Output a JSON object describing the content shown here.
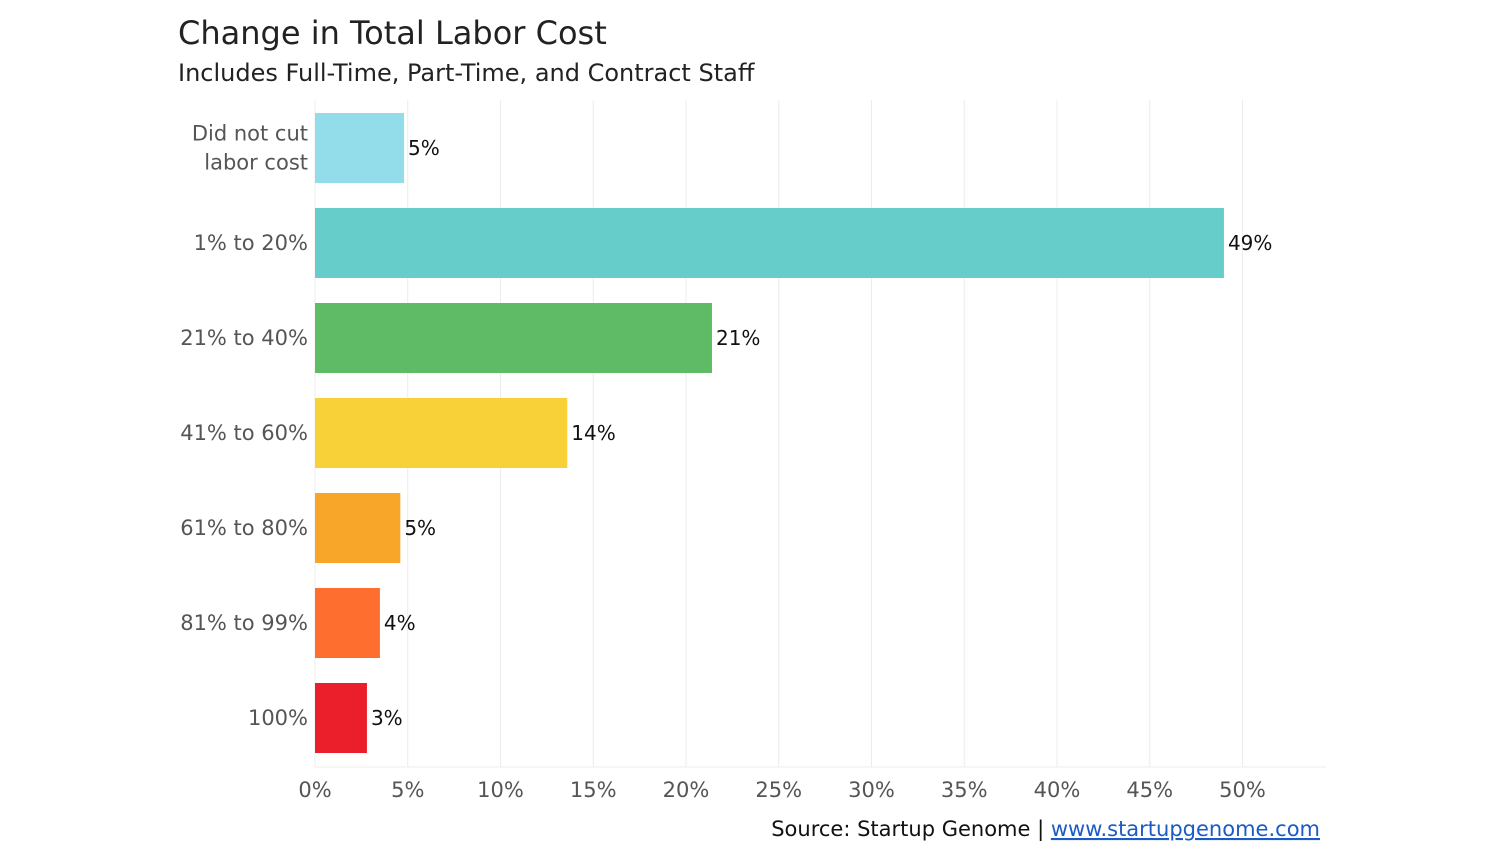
{
  "chart_data": {
    "type": "bar",
    "orientation": "horizontal",
    "title": "Change in Total Labor Cost",
    "subtitle": "Includes Full-Time, Part-Time, and Contract Staff",
    "categories": [
      [
        "Did not cut",
        "labor cost"
      ],
      [
        "1% to 20%"
      ],
      [
        "21% to 40%"
      ],
      [
        "41% to 60%"
      ],
      [
        "61% to 80%"
      ],
      [
        "81% to 99%"
      ],
      [
        "100%"
      ]
    ],
    "values": [
      4.8,
      49.0,
      21.4,
      13.6,
      4.6,
      3.5,
      2.8
    ],
    "data_labels": [
      "5%",
      "49%",
      "21%",
      "14%",
      "5%",
      "4%",
      "3%"
    ],
    "colors": [
      "#93dcea",
      "#66cdcb",
      "#5fbb66",
      "#f8d139",
      "#f7a62a",
      "#fd6e2f",
      "#eb1e2b"
    ],
    "xlim": [
      0,
      54.5
    ],
    "xticks": [
      0,
      5,
      10,
      15,
      20,
      25,
      30,
      35,
      40,
      45,
      50
    ],
    "xtick_labels": [
      "0%",
      "5%",
      "10%",
      "15%",
      "20%",
      "25%",
      "30%",
      "35%",
      "40%",
      "45%",
      "50%"
    ],
    "grid": true,
    "xlabel": "",
    "ylabel": ""
  },
  "source": {
    "prefix": "Source: Startup Genome | ",
    "link_text": "www.startupgenome.com"
  }
}
